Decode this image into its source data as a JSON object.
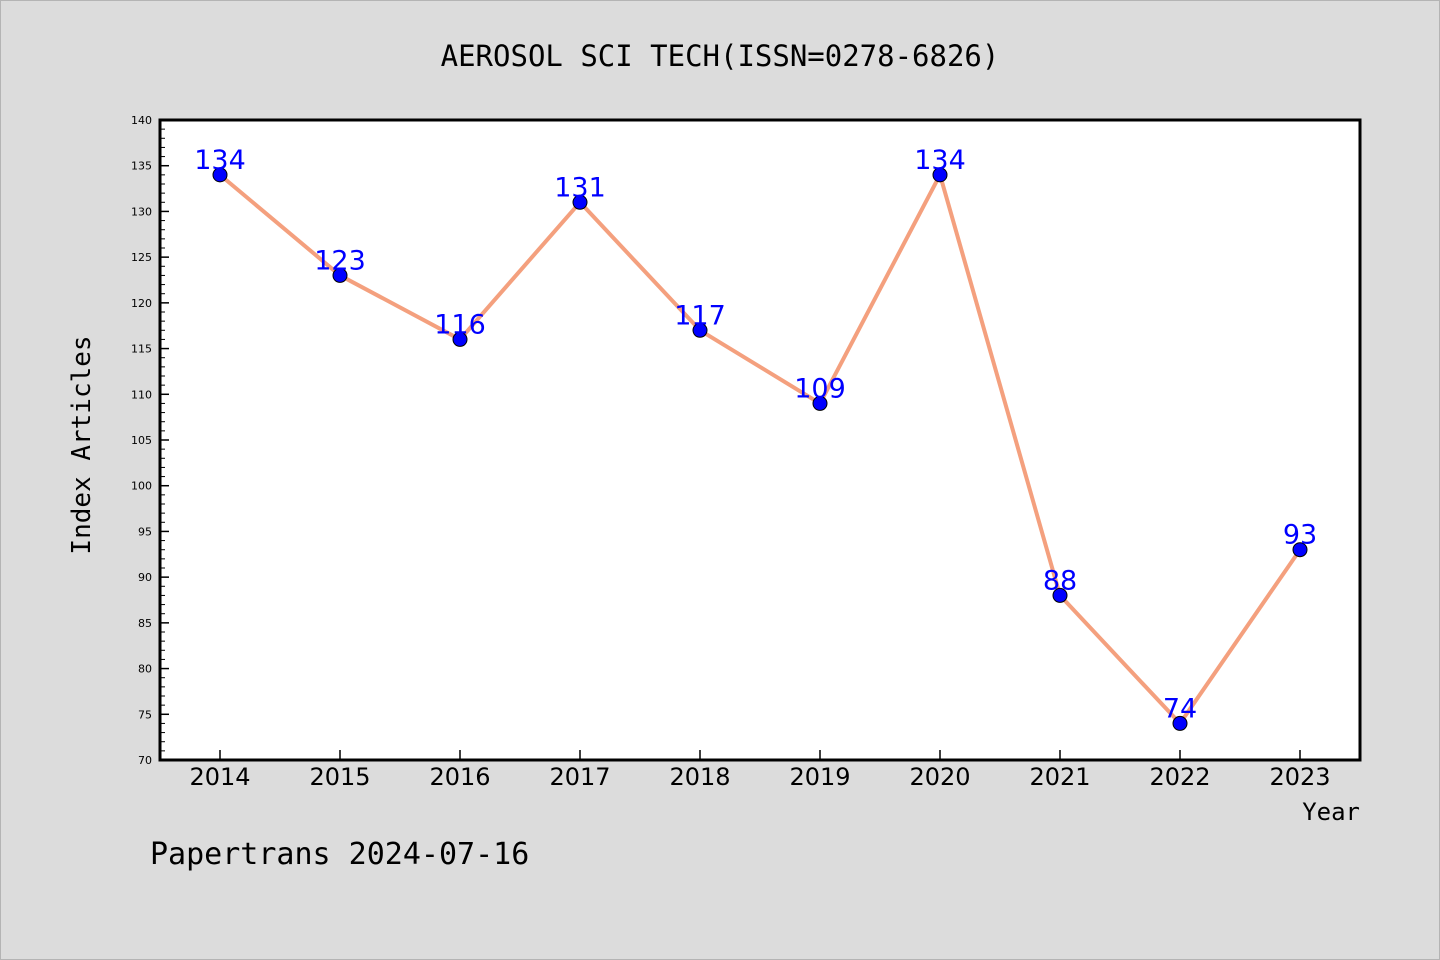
{
  "chart_data": {
    "type": "line",
    "title": "AEROSOL SCI TECH(ISSN=0278-6826)",
    "xlabel": "Year",
    "ylabel": "Index Articles",
    "categories": [
      "2014",
      "2015",
      "2016",
      "2017",
      "2018",
      "2019",
      "2020",
      "2021",
      "2022",
      "2023"
    ],
    "values": [
      134,
      123,
      116,
      131,
      117,
      109,
      134,
      88,
      74,
      93
    ],
    "point_labels": [
      "134",
      "123",
      "116",
      "131",
      "117",
      "109",
      "134",
      "88",
      "74",
      "93"
    ],
    "yticks": [
      "70",
      "75",
      "80",
      "85",
      "90",
      "95",
      "100",
      "105",
      "110",
      "115",
      "120",
      "125",
      "130",
      "135",
      "140"
    ],
    "ylim": [
      70,
      140
    ],
    "grid": false,
    "colors": {
      "line": "#f4a07e",
      "marker": "#0000ff",
      "label": "#0000ff",
      "background": "#dcdcdc",
      "plot_area": "#ffffff"
    }
  },
  "footer": "Papertrans 2024-07-16"
}
